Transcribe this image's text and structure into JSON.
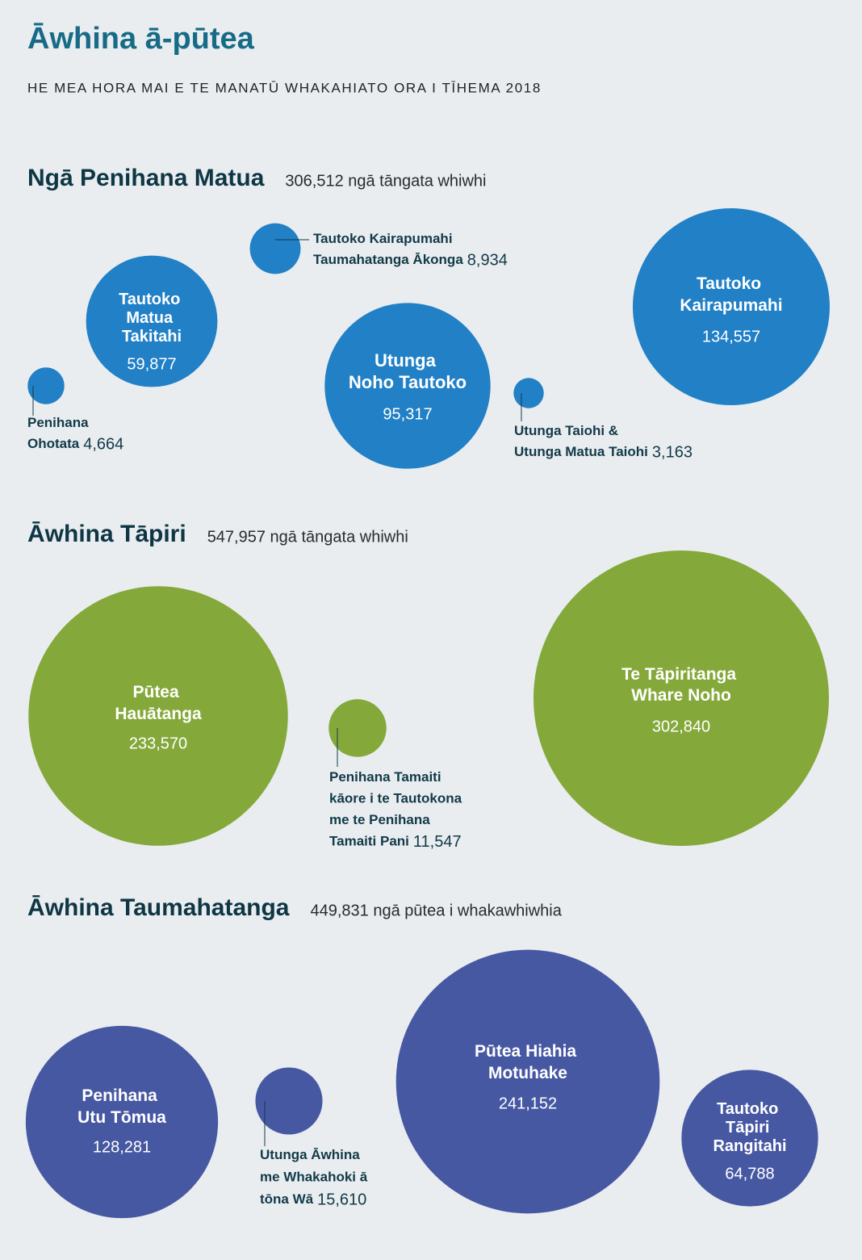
{
  "title": "Āwhina ā-pūtea",
  "subtitle": "HE MEA HORA MAI E TE MANATŪ WHAKAHIATO ORA I TĪHEMA 2018",
  "chart_data": [
    {
      "type": "bubble",
      "title": "Ngā Penihana Matua",
      "subtitle": "306,512 ngā tāngata whiwhi",
      "color": "#2180c6",
      "categories": [
        "Tautoko Matua Takitahi",
        "Tautoko Kairapumahi Taumahatanga Ākonga",
        "Penihana Ohotata",
        "Utunga Noho Tautoko",
        "Utunga Taiohi & Utunga Matua Taiohi",
        "Tautoko Kairapumahi"
      ],
      "values": [
        59877,
        8934,
        4664,
        95317,
        3163,
        134557
      ],
      "value_labels": [
        "59,877",
        "8,934",
        "4,664",
        "95,317",
        "3,163",
        "134,557"
      ]
    },
    {
      "type": "bubble",
      "title": "Āwhina Tāpiri",
      "subtitle": "547,957 ngā tāngata whiwhi",
      "color": "#84a93a",
      "categories": [
        "Pūtea Hauātanga",
        "Penihana Tamaiti kāore i te Tautokona me te Penihana Tamaiti Pani",
        "Te Tāpiritanga Whare Noho"
      ],
      "values": [
        233570,
        11547,
        302840
      ],
      "value_labels": [
        "233,570",
        "11,547",
        "302,840"
      ]
    },
    {
      "type": "bubble",
      "title": "Āwhina Taumahatanga",
      "subtitle": "449,831 ngā pūtea i whakawhiwhia",
      "color": "#4758a3",
      "categories": [
        "Penihana Utu Tōmua",
        "Utunga Āwhina me Whakahoki ā tōna Wā",
        "Pūtea Hiahia Motuhake",
        "Tautoko Tāpiri Rangitahi"
      ],
      "values": [
        128281,
        15610,
        241152,
        64788
      ],
      "value_labels": [
        "128,281",
        "15,610",
        "241,152",
        "64,788"
      ]
    }
  ]
}
